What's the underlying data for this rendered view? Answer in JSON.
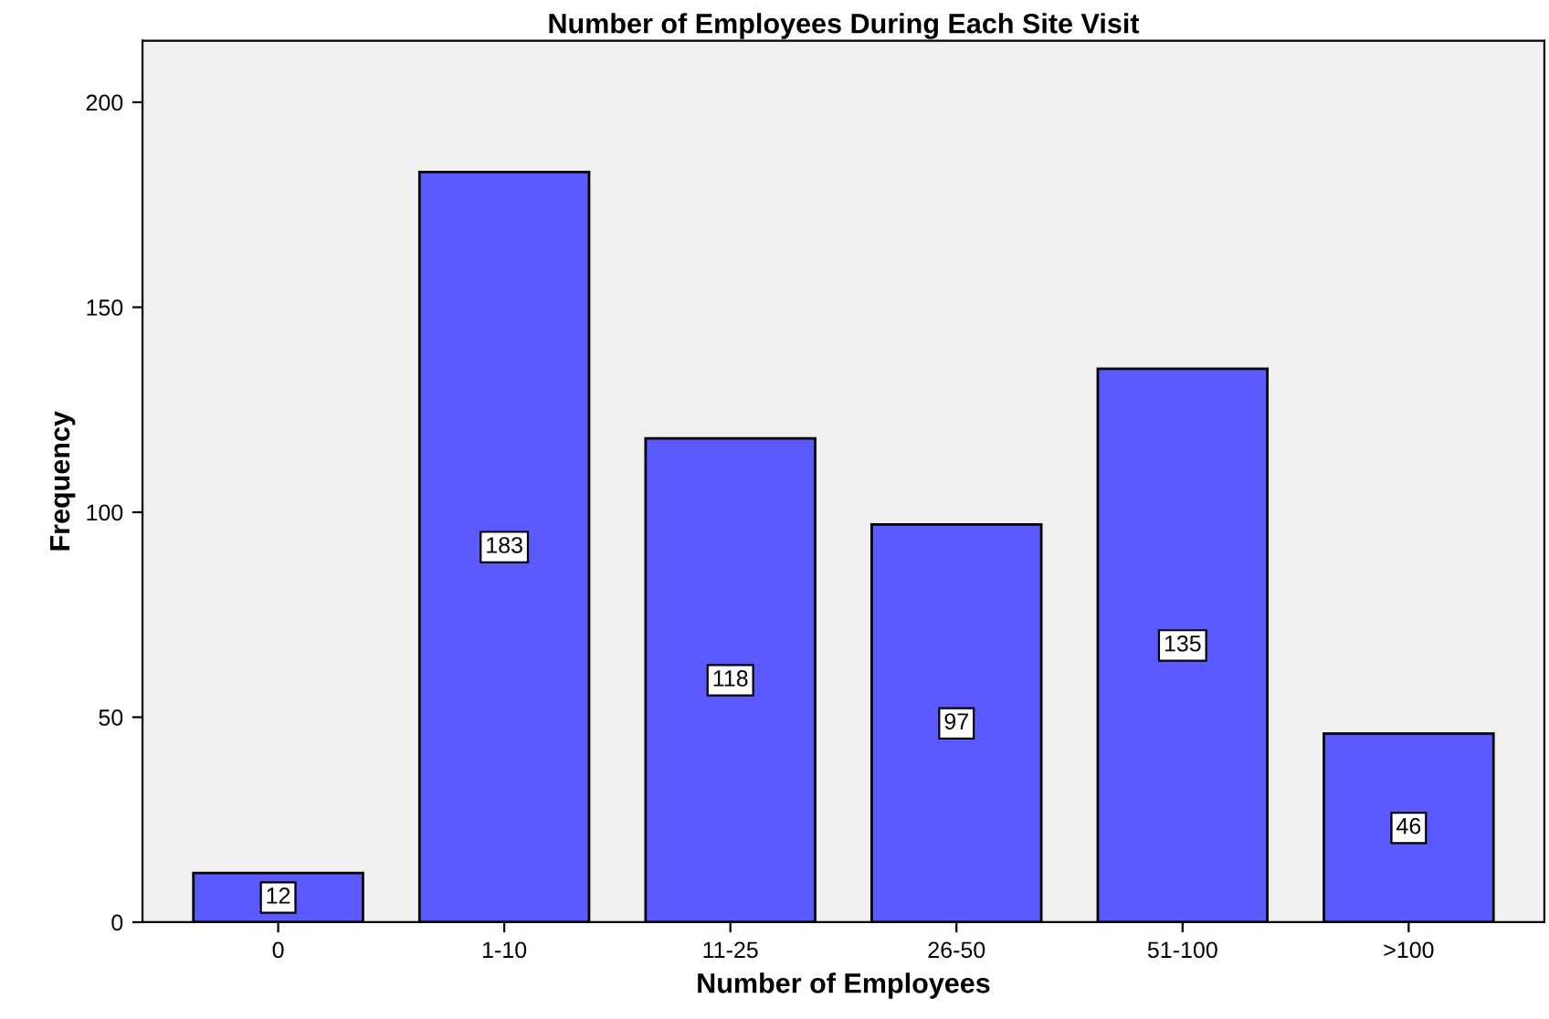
{
  "chart_data": {
    "type": "bar",
    "title": "Number of Employees During Each Site Visit",
    "xlabel": "Number of Employees",
    "ylabel": "Frequency",
    "categories": [
      "0",
      "1-10",
      "11-25",
      "26-50",
      "51-100",
      ">100"
    ],
    "values": [
      12,
      183,
      118,
      97,
      135,
      46
    ],
    "color": "#5a5aff",
    "ylim": [
      0,
      215
    ],
    "yticks": [
      0,
      50,
      100,
      150,
      200
    ],
    "grid": false,
    "data_labels": true
  }
}
